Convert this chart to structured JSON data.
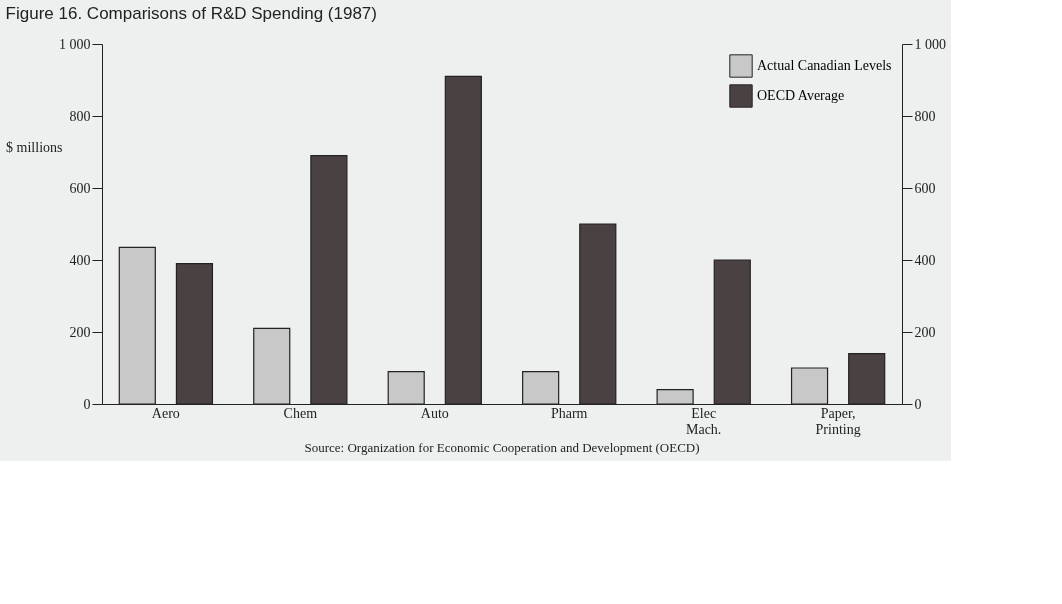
{
  "chart_data": {
    "type": "bar",
    "title": "Figure 16.  Comparisons of R&D Spending (1987)",
    "categories": [
      "Aero",
      "Chem",
      "Auto",
      "Pharm",
      "Elec\nMach.",
      "Paper,\nPrinting"
    ],
    "series": [
      {
        "name": "Actual Canadian Levels",
        "color": "#c8c8c8",
        "values": [
          435,
          210,
          90,
          90,
          40,
          100
        ]
      },
      {
        "name": "OECD Average",
        "color": "#4a4242",
        "values": [
          390,
          690,
          910,
          500,
          400,
          140
        ]
      }
    ],
    "ylabel": "$ millions",
    "ylim": [
      0,
      1000
    ],
    "yticks": [
      0,
      200,
      400,
      600,
      800,
      {
        "value": 1000,
        "label": "1 000"
      }
    ],
    "y2lim": [
      0,
      1000
    ],
    "y2ticks": [
      0,
      200,
      400,
      600,
      800,
      {
        "value": 1000,
        "label": "1 000"
      }
    ],
    "legend": "top right",
    "grid": false,
    "annotations": [
      "Source: Organization for Economic Cooperation and Development (OECD)"
    ]
  }
}
